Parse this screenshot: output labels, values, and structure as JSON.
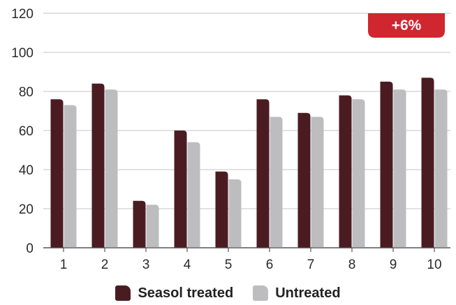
{
  "chart_data": {
    "type": "bar",
    "categories": [
      "1",
      "2",
      "3",
      "4",
      "5",
      "6",
      "7",
      "8",
      "9",
      "10"
    ],
    "series": [
      {
        "name": "Seasol treated",
        "color": "#4a1c22",
        "values": [
          76,
          84,
          24,
          60,
          39,
          76,
          69,
          78,
          85,
          87
        ]
      },
      {
        "name": "Untreated",
        "color": "#bdbdbf",
        "values": [
          73,
          81,
          22,
          54,
          35,
          67,
          67,
          76,
          81,
          81
        ]
      }
    ],
    "ylim": [
      0,
      120
    ],
    "yticks": [
      "0",
      "20",
      "40",
      "60",
      "80",
      "100",
      "120"
    ],
    "grid": true,
    "legend": "bottom",
    "annotation": {
      "text": "+6%",
      "color": "#d0262f"
    }
  }
}
